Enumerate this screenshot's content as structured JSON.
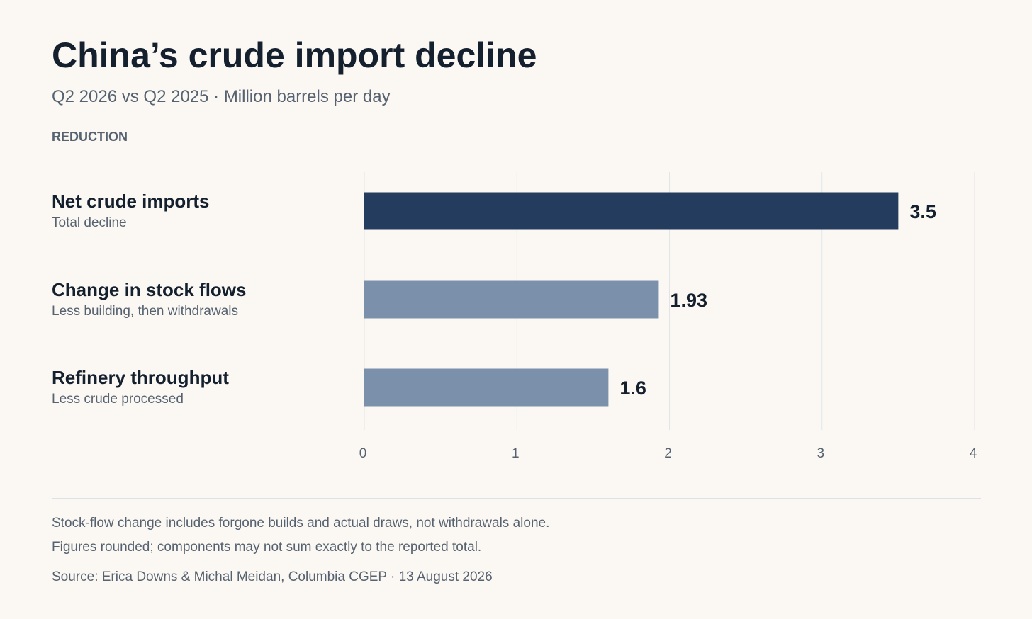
{
  "header": {
    "title": "China’s crude import decline",
    "subtitle": "Q2 2026 vs Q2 2025 · Million barrels per day",
    "section_label": "REDUCTION"
  },
  "chart_data": {
    "type": "bar",
    "orientation": "horizontal",
    "categories": [
      "Net crude imports",
      "Change in stock flows",
      "Refinery throughput"
    ],
    "descriptions": [
      "Total decline",
      "Less building, then withdrawals",
      "Less crude processed"
    ],
    "values": [
      3.5,
      1.93,
      1.6
    ],
    "value_labels": [
      "3.5",
      "1.93",
      "1.6"
    ],
    "bar_colors": [
      "#243d5e",
      "#7b91ab",
      "#7b91ab"
    ],
    "xlim": [
      0,
      4
    ],
    "xticks": [
      0,
      1,
      2,
      3,
      4
    ],
    "xtick_labels": [
      "0",
      "1",
      "2",
      "3",
      "4"
    ],
    "grid": true
  },
  "footer": {
    "note1": "Stock-flow change includes forgone builds and actual draws, not withdrawals alone.",
    "note2": "Figures rounded; components may not sum exactly to the reported total.",
    "source": "Source: Erica Downs & Michal Meidan, Columbia CGEP · 13 August 2026"
  }
}
